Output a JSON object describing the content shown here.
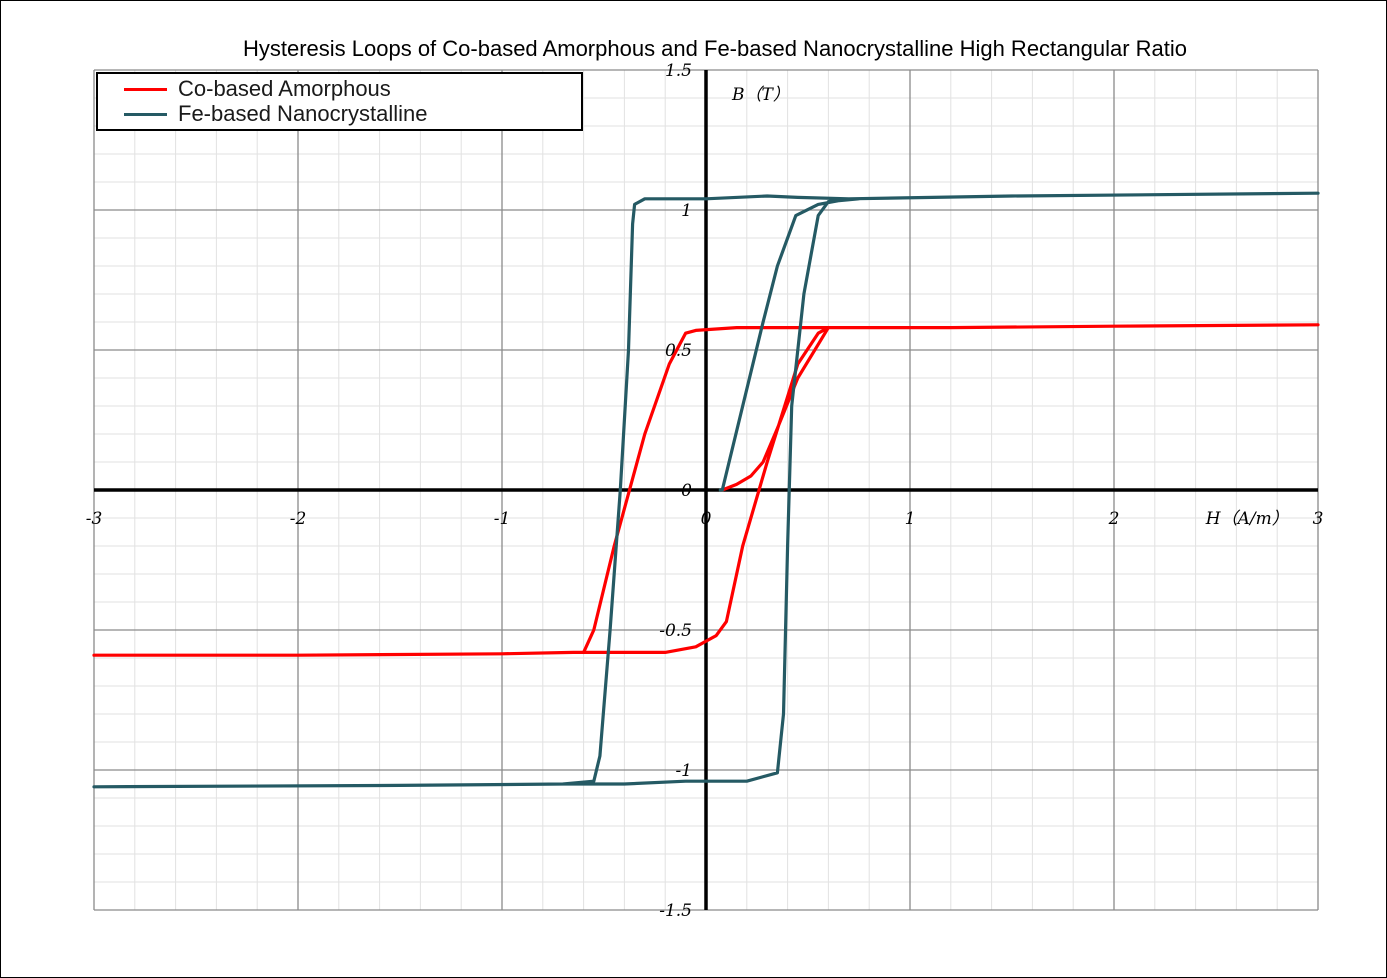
{
  "chart_data": {
    "type": "line",
    "title": "Hysteresis Loops of Co-based Amorphous and Fe-based Nanocrystalline High Rectangular Ratio",
    "xlabel": "H（A/m）",
    "ylabel": "B（T）",
    "xlim": [
      -3,
      3
    ],
    "ylim": [
      -1.5,
      1.5
    ],
    "x_ticks": [
      "-3",
      "-2",
      "-1",
      "0",
      "1",
      "2",
      "3"
    ],
    "y_ticks": [
      "-1.5",
      "-1",
      "-0.5",
      "0",
      "0.5",
      "1",
      "1.5"
    ],
    "grid": true,
    "minor_grid": true,
    "legend_position": "top-left",
    "series": [
      {
        "name": "Co-based Amorphous",
        "color": "#ff0000",
        "points": [
          [
            0.08,
            0.0
          ],
          [
            0.15,
            0.02
          ],
          [
            0.22,
            0.05
          ],
          [
            0.28,
            0.1
          ],
          [
            0.35,
            0.22
          ],
          [
            0.45,
            0.4
          ],
          [
            0.55,
            0.52
          ],
          [
            0.6,
            0.58
          ],
          [
            0.8,
            0.58
          ],
          [
            1.2,
            0.58
          ],
          [
            2.0,
            0.585
          ],
          [
            3.0,
            0.59
          ],
          null,
          [
            0.6,
            0.58
          ],
          [
            0.55,
            0.56
          ],
          [
            0.45,
            0.45
          ],
          [
            0.3,
            0.1
          ],
          [
            0.18,
            -0.2
          ],
          [
            0.1,
            -0.47
          ],
          [
            0.05,
            -0.52
          ],
          [
            -0.05,
            -0.56
          ],
          [
            -0.2,
            -0.58
          ],
          [
            -0.5,
            -0.58
          ],
          [
            -0.65,
            -0.58
          ],
          [
            -1.0,
            -0.585
          ],
          [
            -2.0,
            -0.59
          ],
          [
            -3.0,
            -0.59
          ],
          null,
          [
            -0.6,
            -0.58
          ],
          [
            -0.55,
            -0.5
          ],
          [
            -0.45,
            -0.2
          ],
          [
            -0.3,
            0.2
          ],
          [
            -0.18,
            0.45
          ],
          [
            -0.1,
            0.56
          ],
          [
            -0.05,
            0.57
          ],
          [
            0.15,
            0.58
          ],
          [
            0.35,
            0.58
          ],
          [
            0.6,
            0.58
          ]
        ]
      },
      {
        "name": "Fe-based Nanocrystalline",
        "color": "#255a64",
        "points": [
          [
            0.07,
            0.0
          ],
          [
            0.08,
            0.0
          ],
          [
            0.18,
            0.3
          ],
          [
            0.28,
            0.6
          ],
          [
            0.35,
            0.8
          ],
          [
            0.44,
            0.98
          ],
          [
            0.55,
            1.02
          ],
          [
            0.7,
            1.04
          ],
          [
            1.5,
            1.05
          ],
          [
            3.0,
            1.06
          ],
          null,
          [
            0.75,
            1.04
          ],
          [
            0.6,
            1.03
          ],
          [
            0.55,
            0.98
          ],
          [
            0.48,
            0.7
          ],
          [
            0.42,
            0.3
          ],
          [
            0.4,
            -0.2
          ],
          [
            0.38,
            -0.8
          ],
          [
            0.35,
            -1.01
          ],
          [
            0.2,
            -1.04
          ],
          [
            -0.1,
            -1.04
          ],
          [
            -0.4,
            -1.05
          ],
          [
            -0.7,
            -1.05
          ],
          [
            -1.5,
            -1.055
          ],
          [
            -3.0,
            -1.06
          ],
          null,
          [
            -0.7,
            -1.05
          ],
          [
            -0.55,
            -1.04
          ],
          [
            -0.52,
            -0.95
          ],
          [
            -0.47,
            -0.5
          ],
          [
            -0.42,
            0.0
          ],
          [
            -0.38,
            0.5
          ],
          [
            -0.36,
            0.95
          ],
          [
            -0.35,
            1.02
          ],
          [
            -0.3,
            1.04
          ],
          [
            0.0,
            1.04
          ],
          [
            0.3,
            1.05
          ],
          [
            0.45,
            1.045
          ],
          [
            0.7,
            1.04
          ]
        ]
      }
    ]
  }
}
